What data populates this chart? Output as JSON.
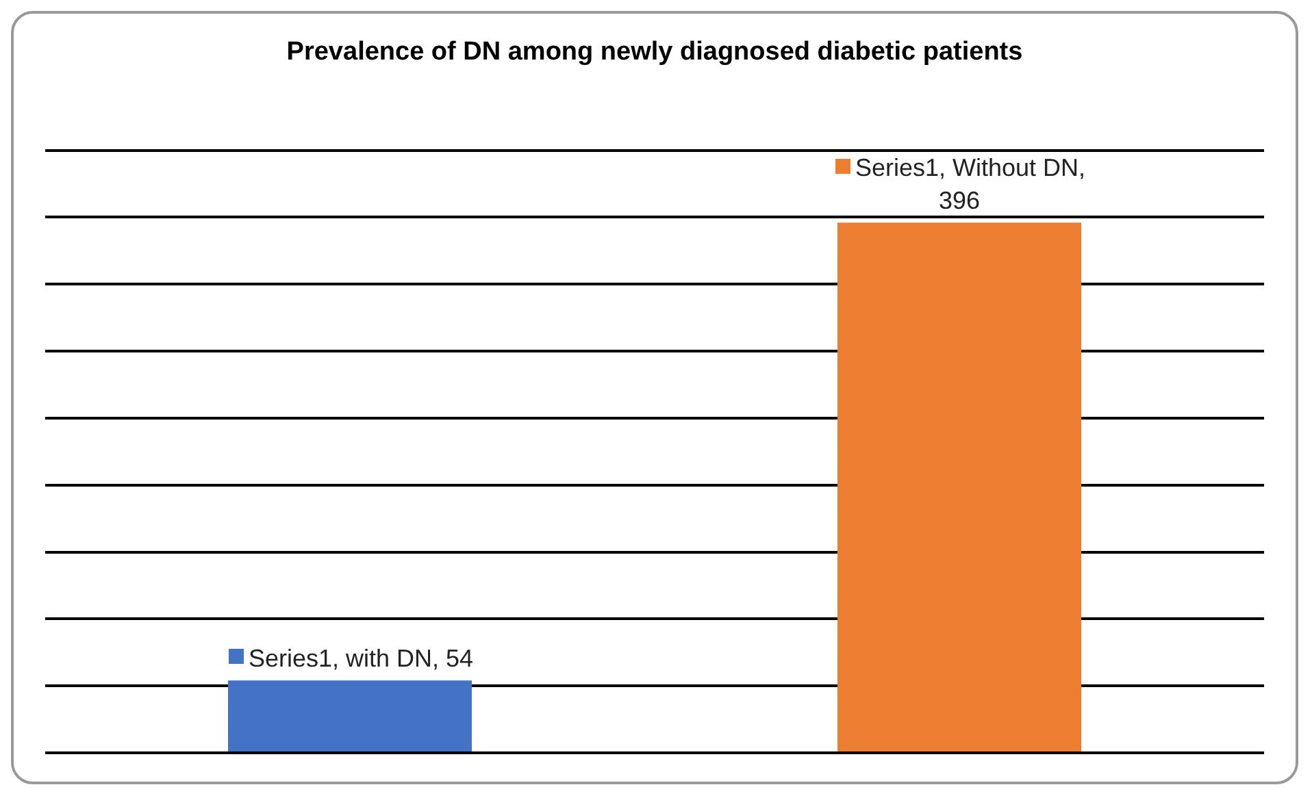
{
  "chart_data": {
    "type": "bar",
    "title": "Prevalence of DN among newly diagnosed diabetic patients",
    "categories": [
      null,
      null
    ],
    "values": [
      54,
      396
    ],
    "colors": [
      "#4472c4",
      "#ed7d31"
    ],
    "value_labels": [
      "Series1, with DN, 54",
      "Series1, Without DN, 396"
    ],
    "ylim": [
      0,
      450
    ],
    "yticks": [
      {
        "value": 0,
        "label": null
      },
      {
        "value": 50,
        "label": null
      },
      {
        "value": 100,
        "label": null
      },
      {
        "value": 150,
        "label": null
      },
      {
        "value": 200,
        "label": null
      },
      {
        "value": 250,
        "label": null
      },
      {
        "value": 300,
        "label": null
      },
      {
        "value": 350,
        "label": null
      },
      {
        "value": 400,
        "label": null
      },
      {
        "value": 450,
        "label": null
      }
    ],
    "grid": "y",
    "tick_labels": false,
    "legend": false
  }
}
